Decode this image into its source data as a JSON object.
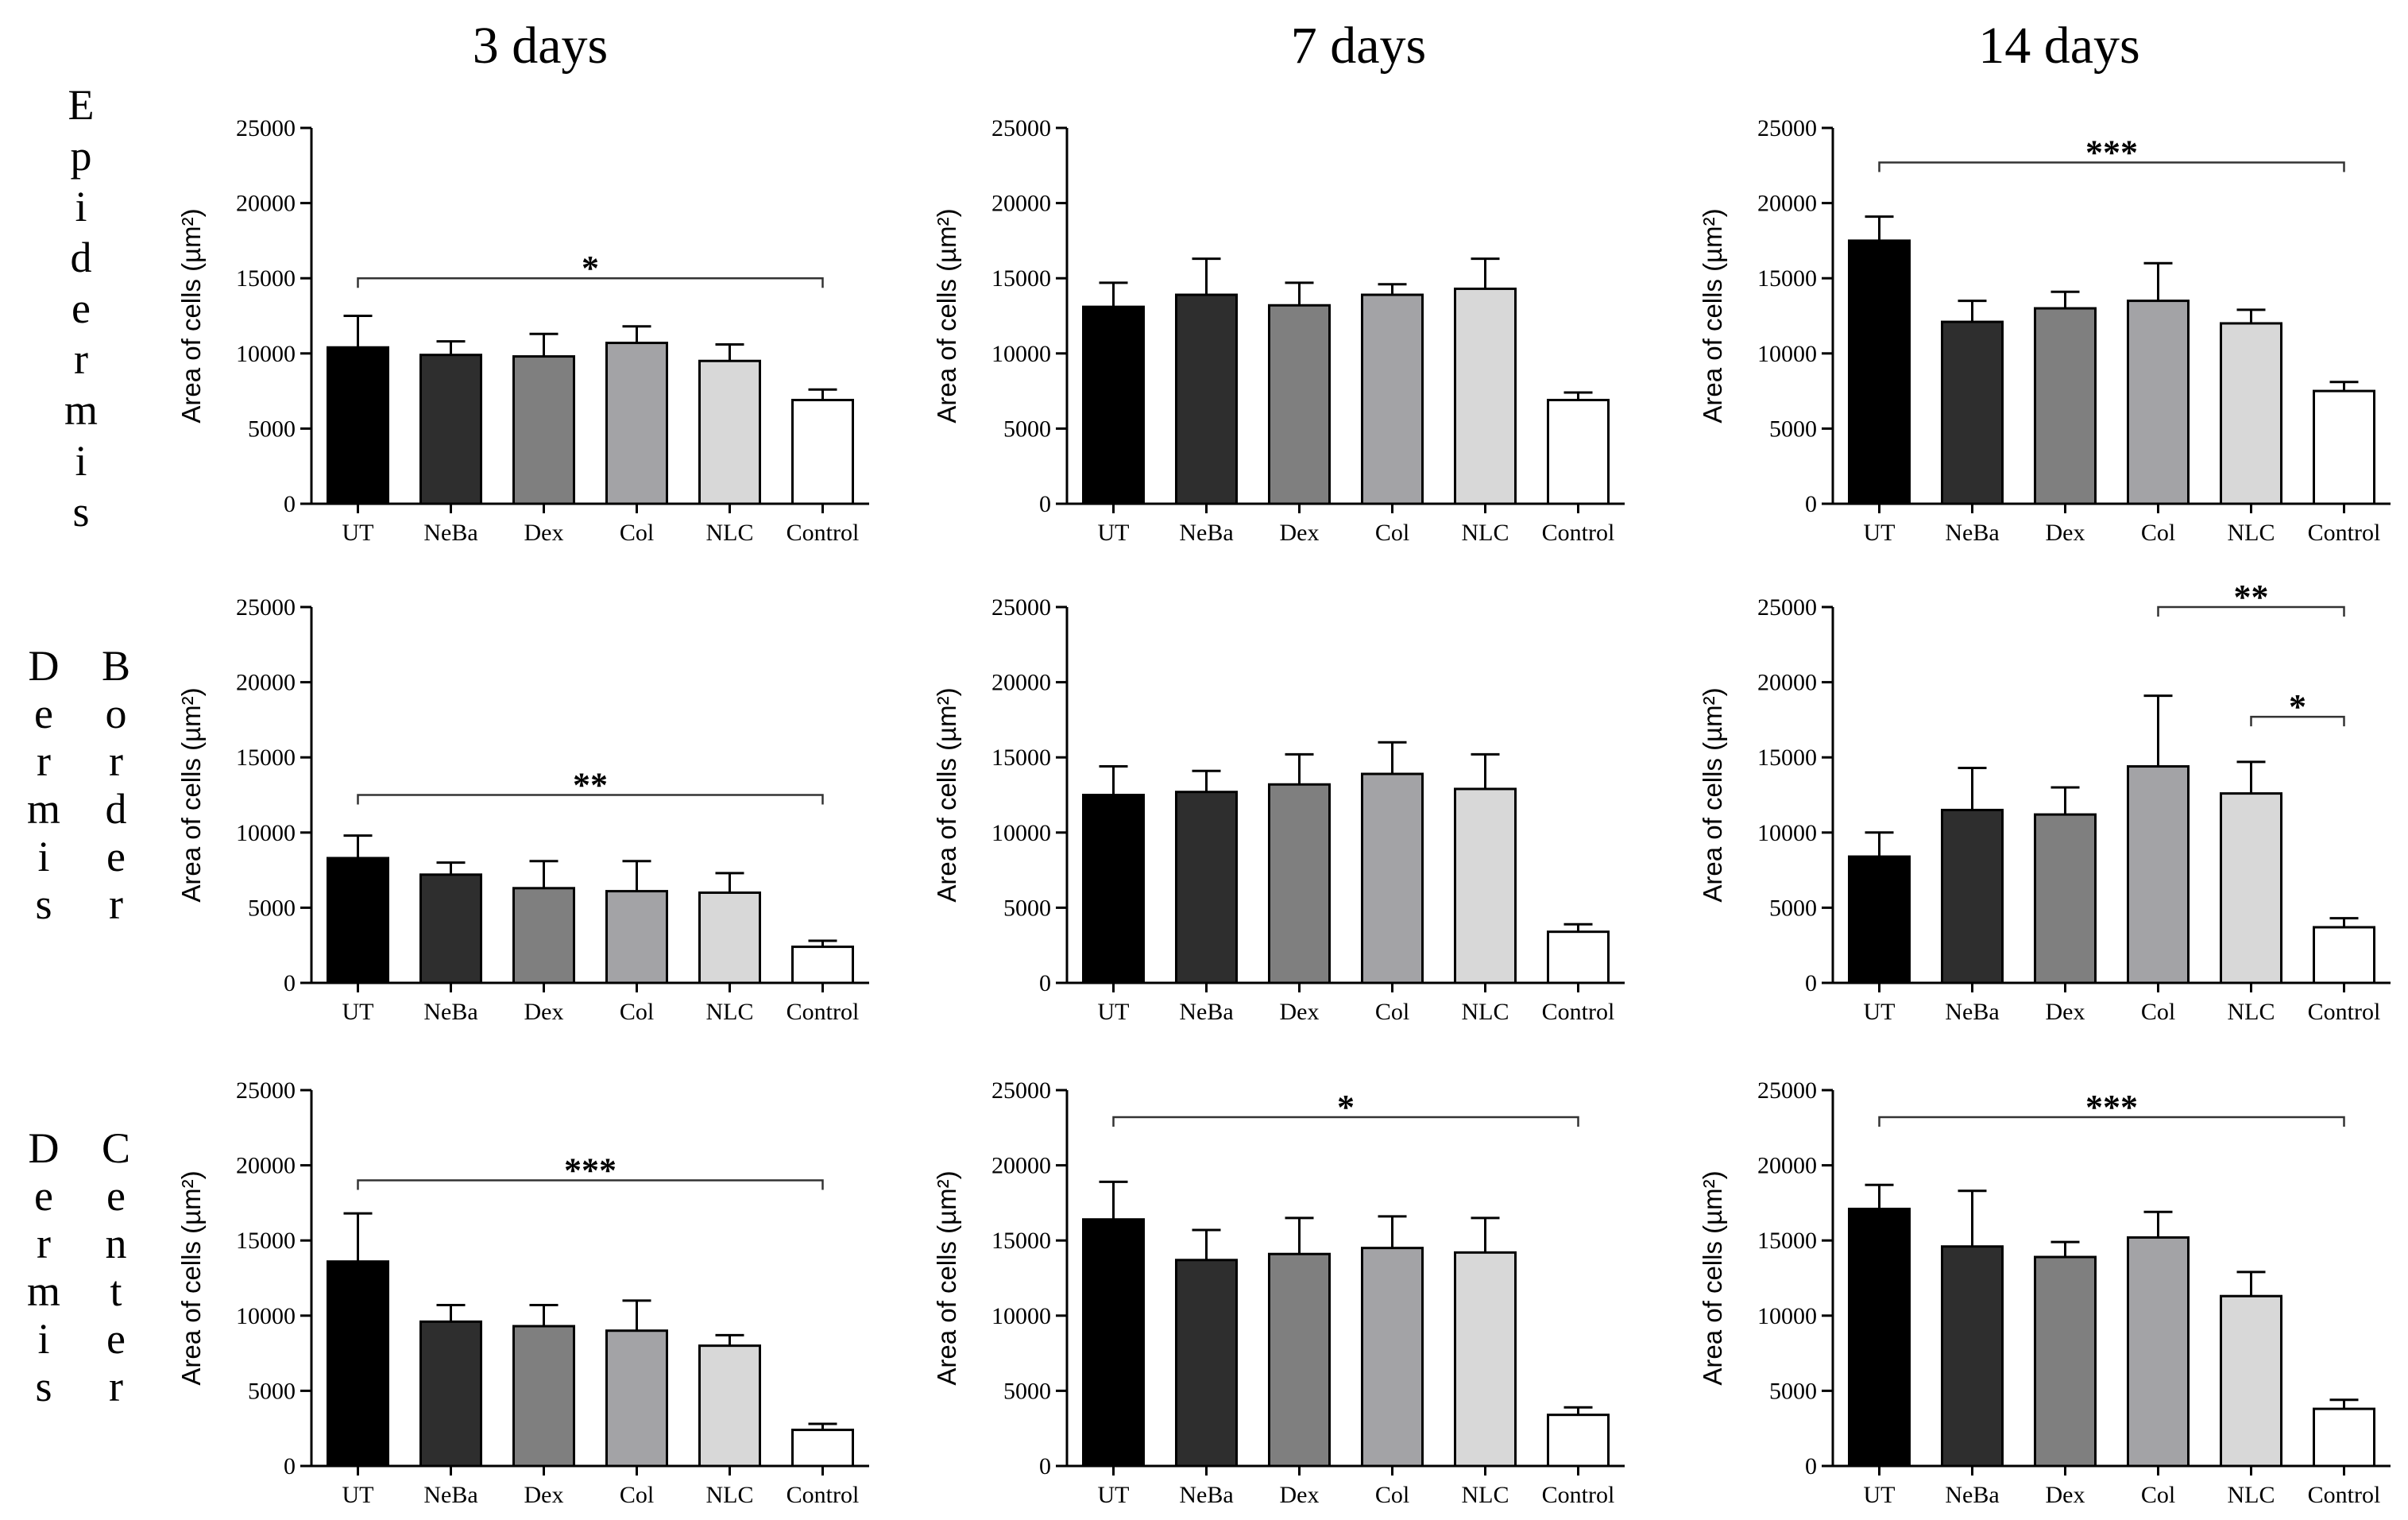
{
  "column_titles": [
    "3 days",
    "7 days",
    "14 days"
  ],
  "row_labels": [
    {
      "words": [
        "Epidermis"
      ]
    },
    {
      "words": [
        "Dermis",
        "Border"
      ]
    },
    {
      "words": [
        "Dermis",
        "Center"
      ]
    }
  ],
  "colors": {
    "UT": "#000000",
    "NeBa": "#2e2e2e",
    "Dex": "#7f7f7f",
    "Col": "#a3a3a6",
    "NLC": "#d8d8d8",
    "Control": "#ffffff",
    "axis": "#000000"
  },
  "chart_data": [
    {
      "type": "bar",
      "panel": "Epidermis - 3 days",
      "ylabel": "Area of cells (µm²)",
      "ylim": [
        0,
        25000
      ],
      "yticks": [
        "0",
        "5000",
        "10000",
        "15000",
        "20000",
        "25000"
      ],
      "categories": [
        "UT",
        "NeBa",
        "Dex",
        "Col",
        "NLC",
        "Control"
      ],
      "values": [
        10400,
        9900,
        9800,
        10700,
        9500,
        6900
      ],
      "errors": [
        2100,
        900,
        1500,
        1100,
        1100,
        700
      ],
      "significance": [
        {
          "from": "UT",
          "to": "Control",
          "level": 15000,
          "label": "*"
        }
      ]
    },
    {
      "type": "bar",
      "panel": "Epidermis - 7 days",
      "ylabel": "Area of cells (µm²)",
      "ylim": [
        0,
        25000
      ],
      "yticks": [
        "0",
        "5000",
        "10000",
        "15000",
        "20000",
        "25000"
      ],
      "categories": [
        "UT",
        "NeBa",
        "Dex",
        "Col",
        "NLC",
        "Control"
      ],
      "values": [
        13100,
        13900,
        13200,
        13900,
        14300,
        6900
      ],
      "errors": [
        1600,
        2400,
        1500,
        700,
        2000,
        500
      ],
      "significance": []
    },
    {
      "type": "bar",
      "panel": "Epidermis - 14 days",
      "ylabel": "Area of cells (µm²)",
      "ylim": [
        0,
        25000
      ],
      "yticks": [
        "0",
        "5000",
        "10000",
        "15000",
        "20000",
        "25000"
      ],
      "categories": [
        "UT",
        "NeBa",
        "Dex",
        "Col",
        "NLC",
        "Control"
      ],
      "values": [
        17500,
        12100,
        13000,
        13500,
        12000,
        7500
      ],
      "errors": [
        1600,
        1400,
        1100,
        2500,
        900,
        600
      ],
      "significance": [
        {
          "from": "UT",
          "to": "Control",
          "level": 22700,
          "label": "***"
        }
      ]
    },
    {
      "type": "bar",
      "panel": "Dermis Border - 3 days",
      "ylabel": "Area of cells (µm²)",
      "ylim": [
        0,
        25000
      ],
      "yticks": [
        "0",
        "5000",
        "10000",
        "15000",
        "20000",
        "25000"
      ],
      "categories": [
        "UT",
        "NeBa",
        "Dex",
        "Col",
        "NLC",
        "Control"
      ],
      "values": [
        8300,
        7200,
        6300,
        6100,
        6000,
        2400
      ],
      "errors": [
        1500,
        800,
        1800,
        2000,
        1300,
        400
      ],
      "significance": [
        {
          "from": "UT",
          "to": "Control",
          "level": 12500,
          "label": "**"
        }
      ]
    },
    {
      "type": "bar",
      "panel": "Dermis Border - 7 days",
      "ylabel": "Area of cells (µm²)",
      "ylim": [
        0,
        25000
      ],
      "yticks": [
        "0",
        "5000",
        "10000",
        "15000",
        "20000",
        "25000"
      ],
      "categories": [
        "UT",
        "NeBa",
        "Dex",
        "Col",
        "NLC",
        "Control"
      ],
      "values": [
        12500,
        12700,
        13200,
        13900,
        12900,
        3400
      ],
      "errors": [
        1900,
        1400,
        2000,
        2100,
        2300,
        500
      ],
      "significance": []
    },
    {
      "type": "bar",
      "panel": "Dermis Border - 14 days",
      "ylabel": "Area of cells (µm²)",
      "ylim": [
        0,
        25000
      ],
      "yticks": [
        "0",
        "5000",
        "10000",
        "15000",
        "20000",
        "25000"
      ],
      "categories": [
        "UT",
        "NeBa",
        "Dex",
        "Col",
        "NLC",
        "Control"
      ],
      "values": [
        8400,
        11500,
        11200,
        14400,
        12600,
        3700
      ],
      "errors": [
        1600,
        2800,
        1800,
        4700,
        2100,
        600
      ],
      "significance": [
        {
          "from": "Col",
          "to": "Control",
          "level": 25000,
          "label": "**"
        },
        {
          "from": "NLC",
          "to": "Control",
          "level": 17700,
          "label": "*"
        }
      ]
    },
    {
      "type": "bar",
      "panel": "Dermis Center - 3 days",
      "ylabel": "Area of cells (µm²)",
      "ylim": [
        0,
        25000
      ],
      "yticks": [
        "0",
        "5000",
        "10000",
        "15000",
        "20000",
        "25000"
      ],
      "categories": [
        "UT",
        "NeBa",
        "Dex",
        "Col",
        "NLC",
        "Control"
      ],
      "values": [
        13600,
        9600,
        9300,
        9000,
        8000,
        2400
      ],
      "errors": [
        3200,
        1100,
        1400,
        2000,
        700,
        400
      ],
      "significance": [
        {
          "from": "UT",
          "to": "Control",
          "level": 19000,
          "label": "***"
        }
      ]
    },
    {
      "type": "bar",
      "panel": "Dermis Center - 7 days",
      "ylabel": "Area of cells (µm²)",
      "ylim": [
        0,
        25000
      ],
      "yticks": [
        "0",
        "5000",
        "10000",
        "15000",
        "20000",
        "25000"
      ],
      "categories": [
        "UT",
        "NeBa",
        "Dex",
        "Col",
        "NLC",
        "Control"
      ],
      "values": [
        16400,
        13700,
        14100,
        14500,
        14200,
        3400
      ],
      "errors": [
        2500,
        2000,
        2400,
        2100,
        2300,
        500
      ],
      "significance": [
        {
          "from": "UT",
          "to": "Control",
          "level": 23200,
          "label": "*"
        }
      ]
    },
    {
      "type": "bar",
      "panel": "Dermis Center - 14 days",
      "ylabel": "Area of cells (µm²)",
      "ylim": [
        0,
        25000
      ],
      "yticks": [
        "0",
        "5000",
        "10000",
        "15000",
        "20000",
        "25000"
      ],
      "categories": [
        "UT",
        "NeBa",
        "Dex",
        "Col",
        "NLC",
        "Control"
      ],
      "values": [
        17100,
        14600,
        13900,
        15200,
        11300,
        3800
      ],
      "errors": [
        1600,
        3700,
        1000,
        1700,
        1600,
        600
      ],
      "significance": [
        {
          "from": "UT",
          "to": "Control",
          "level": 23200,
          "label": "***"
        }
      ]
    }
  ]
}
